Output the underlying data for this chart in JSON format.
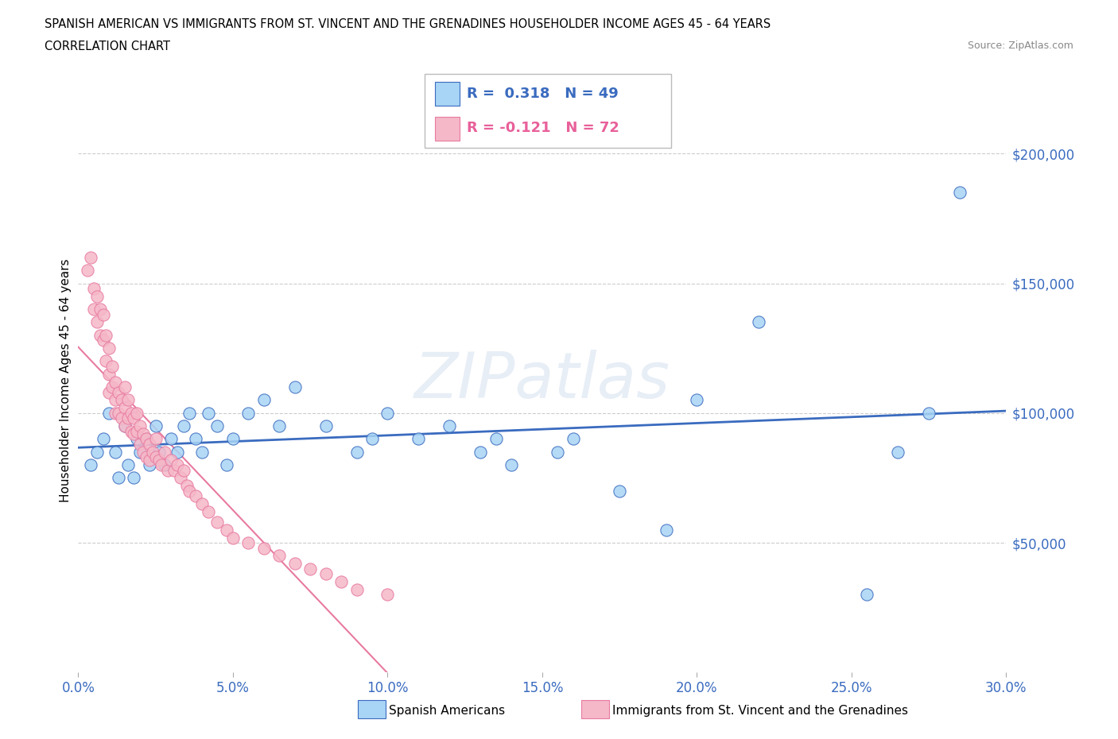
{
  "title_line1": "SPANISH AMERICAN VS IMMIGRANTS FROM ST. VINCENT AND THE GRENADINES HOUSEHOLDER INCOME AGES 45 - 64 YEARS",
  "title_line2": "CORRELATION CHART",
  "source": "Source: ZipAtlas.com",
  "ylabel": "Householder Income Ages 45 - 64 years",
  "watermark": "ZIPatlas",
  "legend_label1": "Spanish Americans",
  "legend_label2": "Immigrants from St. Vincent and the Grenadines",
  "R1": 0.318,
  "N1": 49,
  "R2": -0.121,
  "N2": 72,
  "color_blue": "#a8d4f5",
  "color_pink": "#f5b8c8",
  "color_blue_line": "#3a6bbf",
  "color_pink_line": "#e87aa0",
  "color_blue_text": "#3a6bbf",
  "color_pink_text": "#e8609a",
  "xmin": 0.0,
  "xmax": 0.3,
  "ymin": 0,
  "ymax": 225000,
  "yticks": [
    50000,
    100000,
    150000,
    200000
  ],
  "ytick_labels": [
    "$50,000",
    "$100,000",
    "$150,000",
    "$200,000"
  ],
  "xtick_vals": [
    0.0,
    0.05,
    0.1,
    0.15,
    0.2,
    0.25,
    0.3
  ],
  "xtick_labels": [
    "0.0%",
    "5.0%",
    "10.0%",
    "15.0%",
    "20.0%",
    "25.0%",
    "30.0%"
  ],
  "blue_scatter_x": [
    0.004,
    0.006,
    0.008,
    0.01,
    0.012,
    0.013,
    0.015,
    0.016,
    0.018,
    0.019,
    0.02,
    0.022,
    0.023,
    0.025,
    0.026,
    0.028,
    0.03,
    0.032,
    0.034,
    0.036,
    0.038,
    0.04,
    0.042,
    0.045,
    0.048,
    0.05,
    0.055,
    0.06,
    0.065,
    0.07,
    0.08,
    0.09,
    0.095,
    0.1,
    0.11,
    0.12,
    0.13,
    0.135,
    0.14,
    0.155,
    0.16,
    0.175,
    0.19,
    0.2,
    0.22,
    0.255,
    0.265,
    0.275,
    0.285
  ],
  "blue_scatter_y": [
    80000,
    85000,
    90000,
    100000,
    85000,
    75000,
    95000,
    80000,
    75000,
    90000,
    85000,
    90000,
    80000,
    95000,
    85000,
    80000,
    90000,
    85000,
    95000,
    100000,
    90000,
    85000,
    100000,
    95000,
    80000,
    90000,
    100000,
    105000,
    95000,
    110000,
    95000,
    85000,
    90000,
    100000,
    90000,
    95000,
    85000,
    90000,
    80000,
    85000,
    90000,
    70000,
    55000,
    105000,
    135000,
    30000,
    85000,
    100000,
    185000
  ],
  "pink_scatter_x": [
    0.003,
    0.004,
    0.005,
    0.005,
    0.006,
    0.006,
    0.007,
    0.007,
    0.008,
    0.008,
    0.009,
    0.009,
    0.01,
    0.01,
    0.01,
    0.011,
    0.011,
    0.012,
    0.012,
    0.012,
    0.013,
    0.013,
    0.014,
    0.014,
    0.015,
    0.015,
    0.015,
    0.016,
    0.016,
    0.017,
    0.017,
    0.018,
    0.018,
    0.019,
    0.019,
    0.02,
    0.02,
    0.021,
    0.021,
    0.022,
    0.022,
    0.023,
    0.023,
    0.024,
    0.025,
    0.025,
    0.026,
    0.027,
    0.028,
    0.029,
    0.03,
    0.031,
    0.032,
    0.033,
    0.034,
    0.035,
    0.036,
    0.038,
    0.04,
    0.042,
    0.045,
    0.048,
    0.05,
    0.055,
    0.06,
    0.065,
    0.07,
    0.075,
    0.08,
    0.085,
    0.09,
    0.1
  ],
  "pink_scatter_y": [
    155000,
    160000,
    148000,
    140000,
    145000,
    135000,
    140000,
    130000,
    138000,
    128000,
    130000,
    120000,
    125000,
    115000,
    108000,
    118000,
    110000,
    112000,
    105000,
    100000,
    108000,
    100000,
    105000,
    98000,
    110000,
    102000,
    95000,
    105000,
    98000,
    100000,
    93000,
    98000,
    92000,
    100000,
    93000,
    95000,
    88000,
    92000,
    85000,
    90000,
    83000,
    88000,
    82000,
    85000,
    90000,
    83000,
    82000,
    80000,
    85000,
    78000,
    82000,
    78000,
    80000,
    75000,
    78000,
    72000,
    70000,
    68000,
    65000,
    62000,
    58000,
    55000,
    52000,
    50000,
    48000,
    45000,
    42000,
    40000,
    38000,
    35000,
    32000,
    30000
  ]
}
